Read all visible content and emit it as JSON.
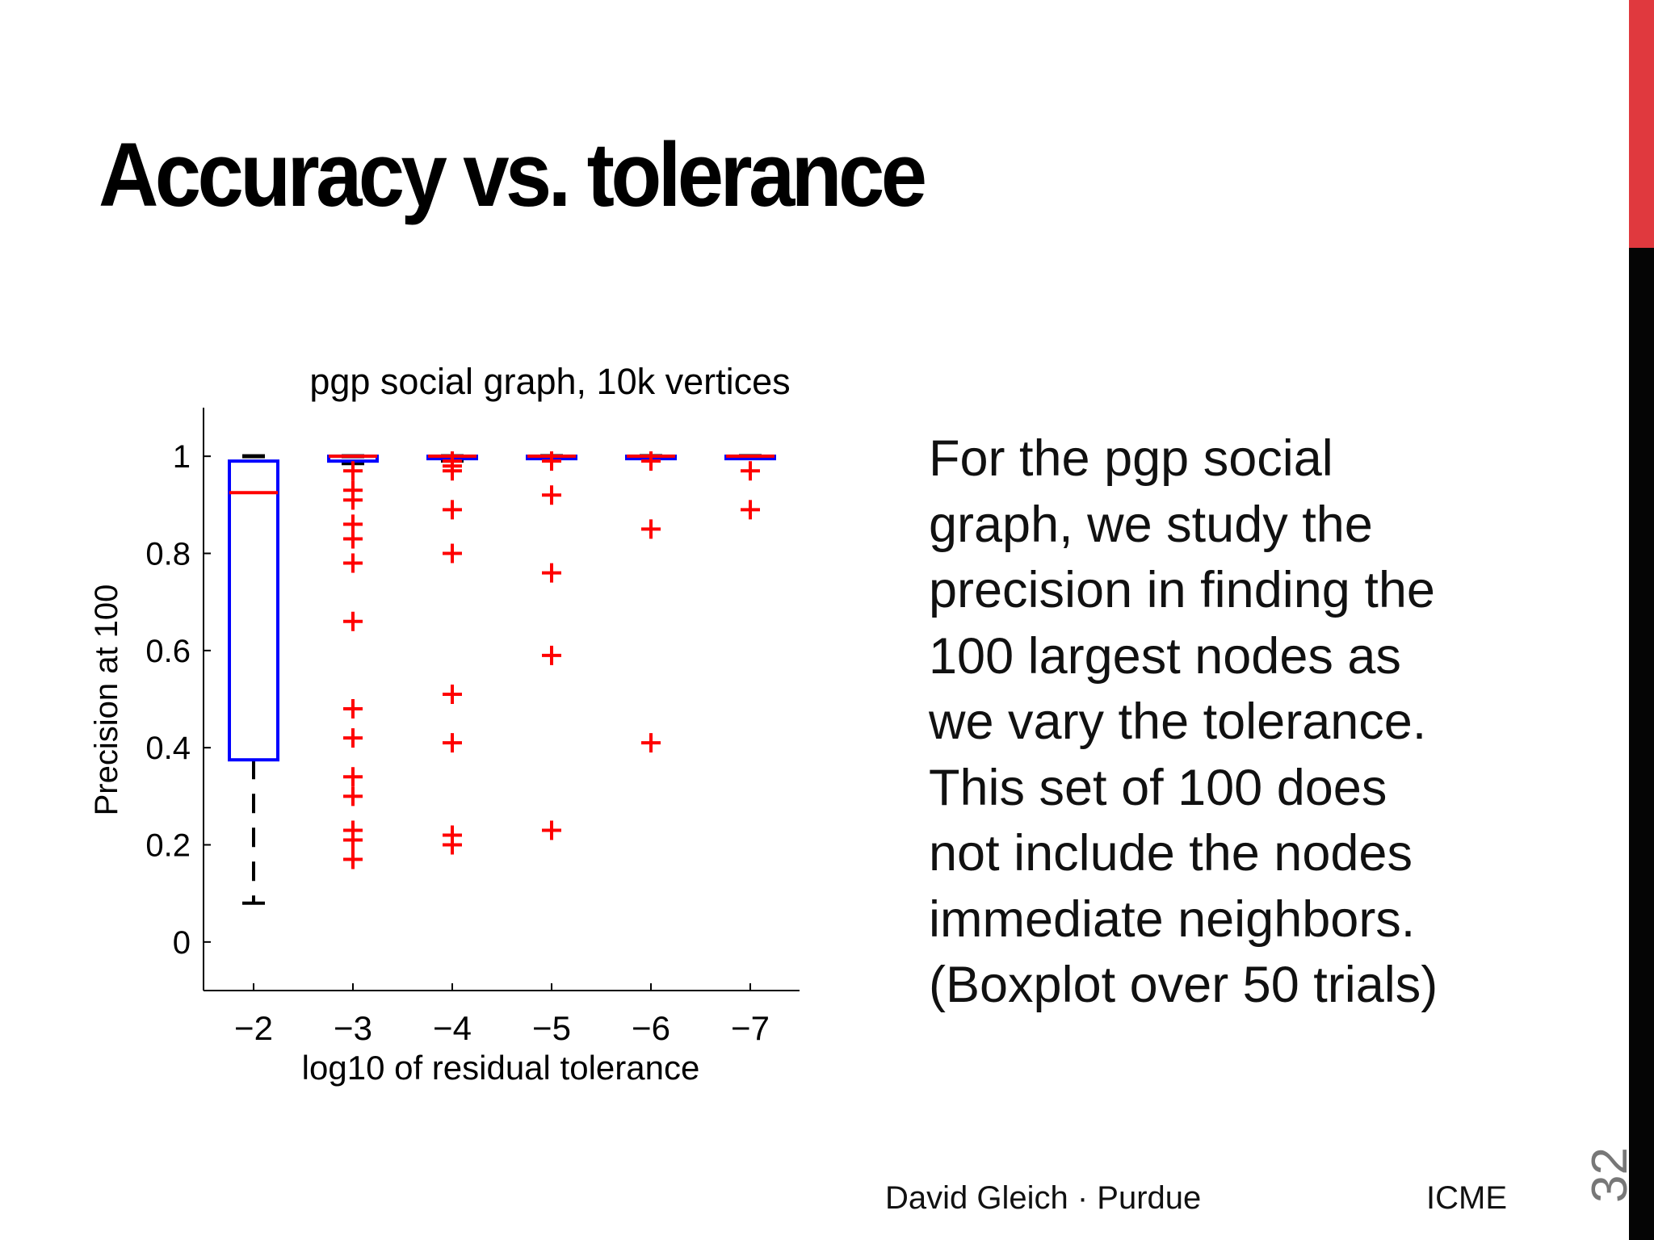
{
  "slide": {
    "title": "Accuracy vs. tolerance",
    "body_lines": [
      "For the pgp social",
      "graph, we study the",
      "precision in finding the",
      "100 largest nodes as",
      "we vary the tolerance.",
      "This set of 100 does",
      "not include the nodes",
      "immediate neighbors.",
      "(Boxplot over 50 trials)"
    ],
    "footer_author": "David Gleich · Purdue",
    "footer_org": "ICME",
    "slide_number": "32",
    "accent_colors": {
      "red": "#e0393e",
      "black": "#050505"
    }
  },
  "chart_data": {
    "type": "boxplot",
    "title": "pgp social graph, 10k vertices",
    "xlabel": "log10 of residual tolerance",
    "ylabel": "Precision at 100",
    "categories": [
      "−2",
      "−3",
      "−4",
      "−5",
      "−6",
      "−7"
    ],
    "ylim": [
      -0.1,
      1.1
    ],
    "yticks": [
      0,
      0.2,
      0.4,
      0.6,
      0.8,
      1
    ],
    "ytick_labels": [
      "0",
      "0.2",
      "0.4",
      "0.6",
      "0.8",
      "1"
    ],
    "grid": false,
    "colors": {
      "box": "#0000ff",
      "median": "#ff0000",
      "whisker": "#000000",
      "outlier": "#ff0000"
    },
    "boxes": [
      {
        "category": "−2",
        "whisker_low": 0.08,
        "q1": 0.375,
        "median": 0.925,
        "q3": 0.99,
        "whisker_high": 1.0,
        "outliers": []
      },
      {
        "category": "−3",
        "whisker_low": 0.985,
        "q1": 0.99,
        "median": 1.0,
        "q3": 1.0,
        "whisker_high": 1.0,
        "outliers": [
          0.97,
          0.93,
          0.91,
          0.86,
          0.83,
          0.78,
          0.66,
          0.48,
          0.42,
          0.34,
          0.3,
          0.23,
          0.21,
          0.17
        ]
      },
      {
        "category": "−4",
        "whisker_low": 0.99,
        "q1": 1.0,
        "median": 1.0,
        "q3": 1.0,
        "whisker_high": 1.0,
        "outliers": [
          0.99,
          0.98,
          0.97,
          0.89,
          0.8,
          0.51,
          0.41,
          0.22,
          0.2
        ]
      },
      {
        "category": "−5",
        "whisker_low": 1.0,
        "q1": 1.0,
        "median": 1.0,
        "q3": 1.0,
        "whisker_high": 1.0,
        "outliers": [
          0.99,
          0.92,
          0.76,
          0.59,
          0.23
        ]
      },
      {
        "category": "−6",
        "whisker_low": 1.0,
        "q1": 1.0,
        "median": 1.0,
        "q3": 1.0,
        "whisker_high": 1.0,
        "outliers": [
          0.99,
          0.85,
          0.41
        ]
      },
      {
        "category": "−7",
        "whisker_low": 1.0,
        "q1": 1.0,
        "median": 1.0,
        "q3": 1.0,
        "whisker_high": 1.0,
        "outliers": [
          0.97,
          0.89
        ]
      }
    ]
  }
}
